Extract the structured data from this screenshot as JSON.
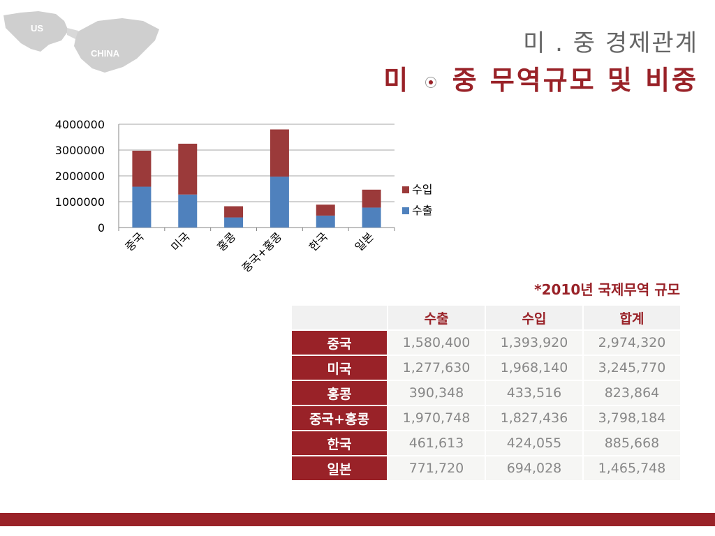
{
  "map": {
    "label_us": "US",
    "label_china": "CHINA"
  },
  "header": {
    "title_small": "미 . 중 경제관계",
    "title_main_left": "미",
    "title_main_right": "중 무역규모 및 비중"
  },
  "chart_data": {
    "type": "bar",
    "stacked": true,
    "categories": [
      "중국",
      "미국",
      "홍콩",
      "중국+홍콩",
      "한국",
      "일본"
    ],
    "series": [
      {
        "name": "수출",
        "color": "#4f81bd",
        "values": [
          1580400,
          1277630,
          390348,
          1970748,
          461613,
          771720
        ]
      },
      {
        "name": "수입",
        "color": "#9b3a3a",
        "values": [
          1393920,
          1968140,
          433516,
          1827436,
          424055,
          694028
        ]
      }
    ],
    "ylim": [
      0,
      4000000
    ],
    "yticks": [
      "0",
      "1000000",
      "2000000",
      "3000000",
      "4000000"
    ],
    "grid": true,
    "legend": "right",
    "legend_order": [
      "수입",
      "수출"
    ]
  },
  "table": {
    "caption": "*2010년 국제무역 규모",
    "headers": [
      "수출",
      "수입",
      "합계"
    ],
    "rows": [
      {
        "label": "중국",
        "values": [
          "1,580,400",
          "1,393,920",
          "2,974,320"
        ]
      },
      {
        "label": "미국",
        "values": [
          "1,277,630",
          "1,968,140",
          "3,245,770"
        ]
      },
      {
        "label": "홍콩",
        "values": [
          "390,348",
          "433,516",
          "823,864"
        ]
      },
      {
        "label": "중국+홍콩",
        "values": [
          "1,970,748",
          "1,827,436",
          "3,798,184"
        ]
      },
      {
        "label": "한국",
        "values": [
          "461,613",
          "424,055",
          "885,668"
        ]
      },
      {
        "label": "일본",
        "values": [
          "771,720",
          "694,028",
          "1,465,748"
        ]
      }
    ]
  }
}
